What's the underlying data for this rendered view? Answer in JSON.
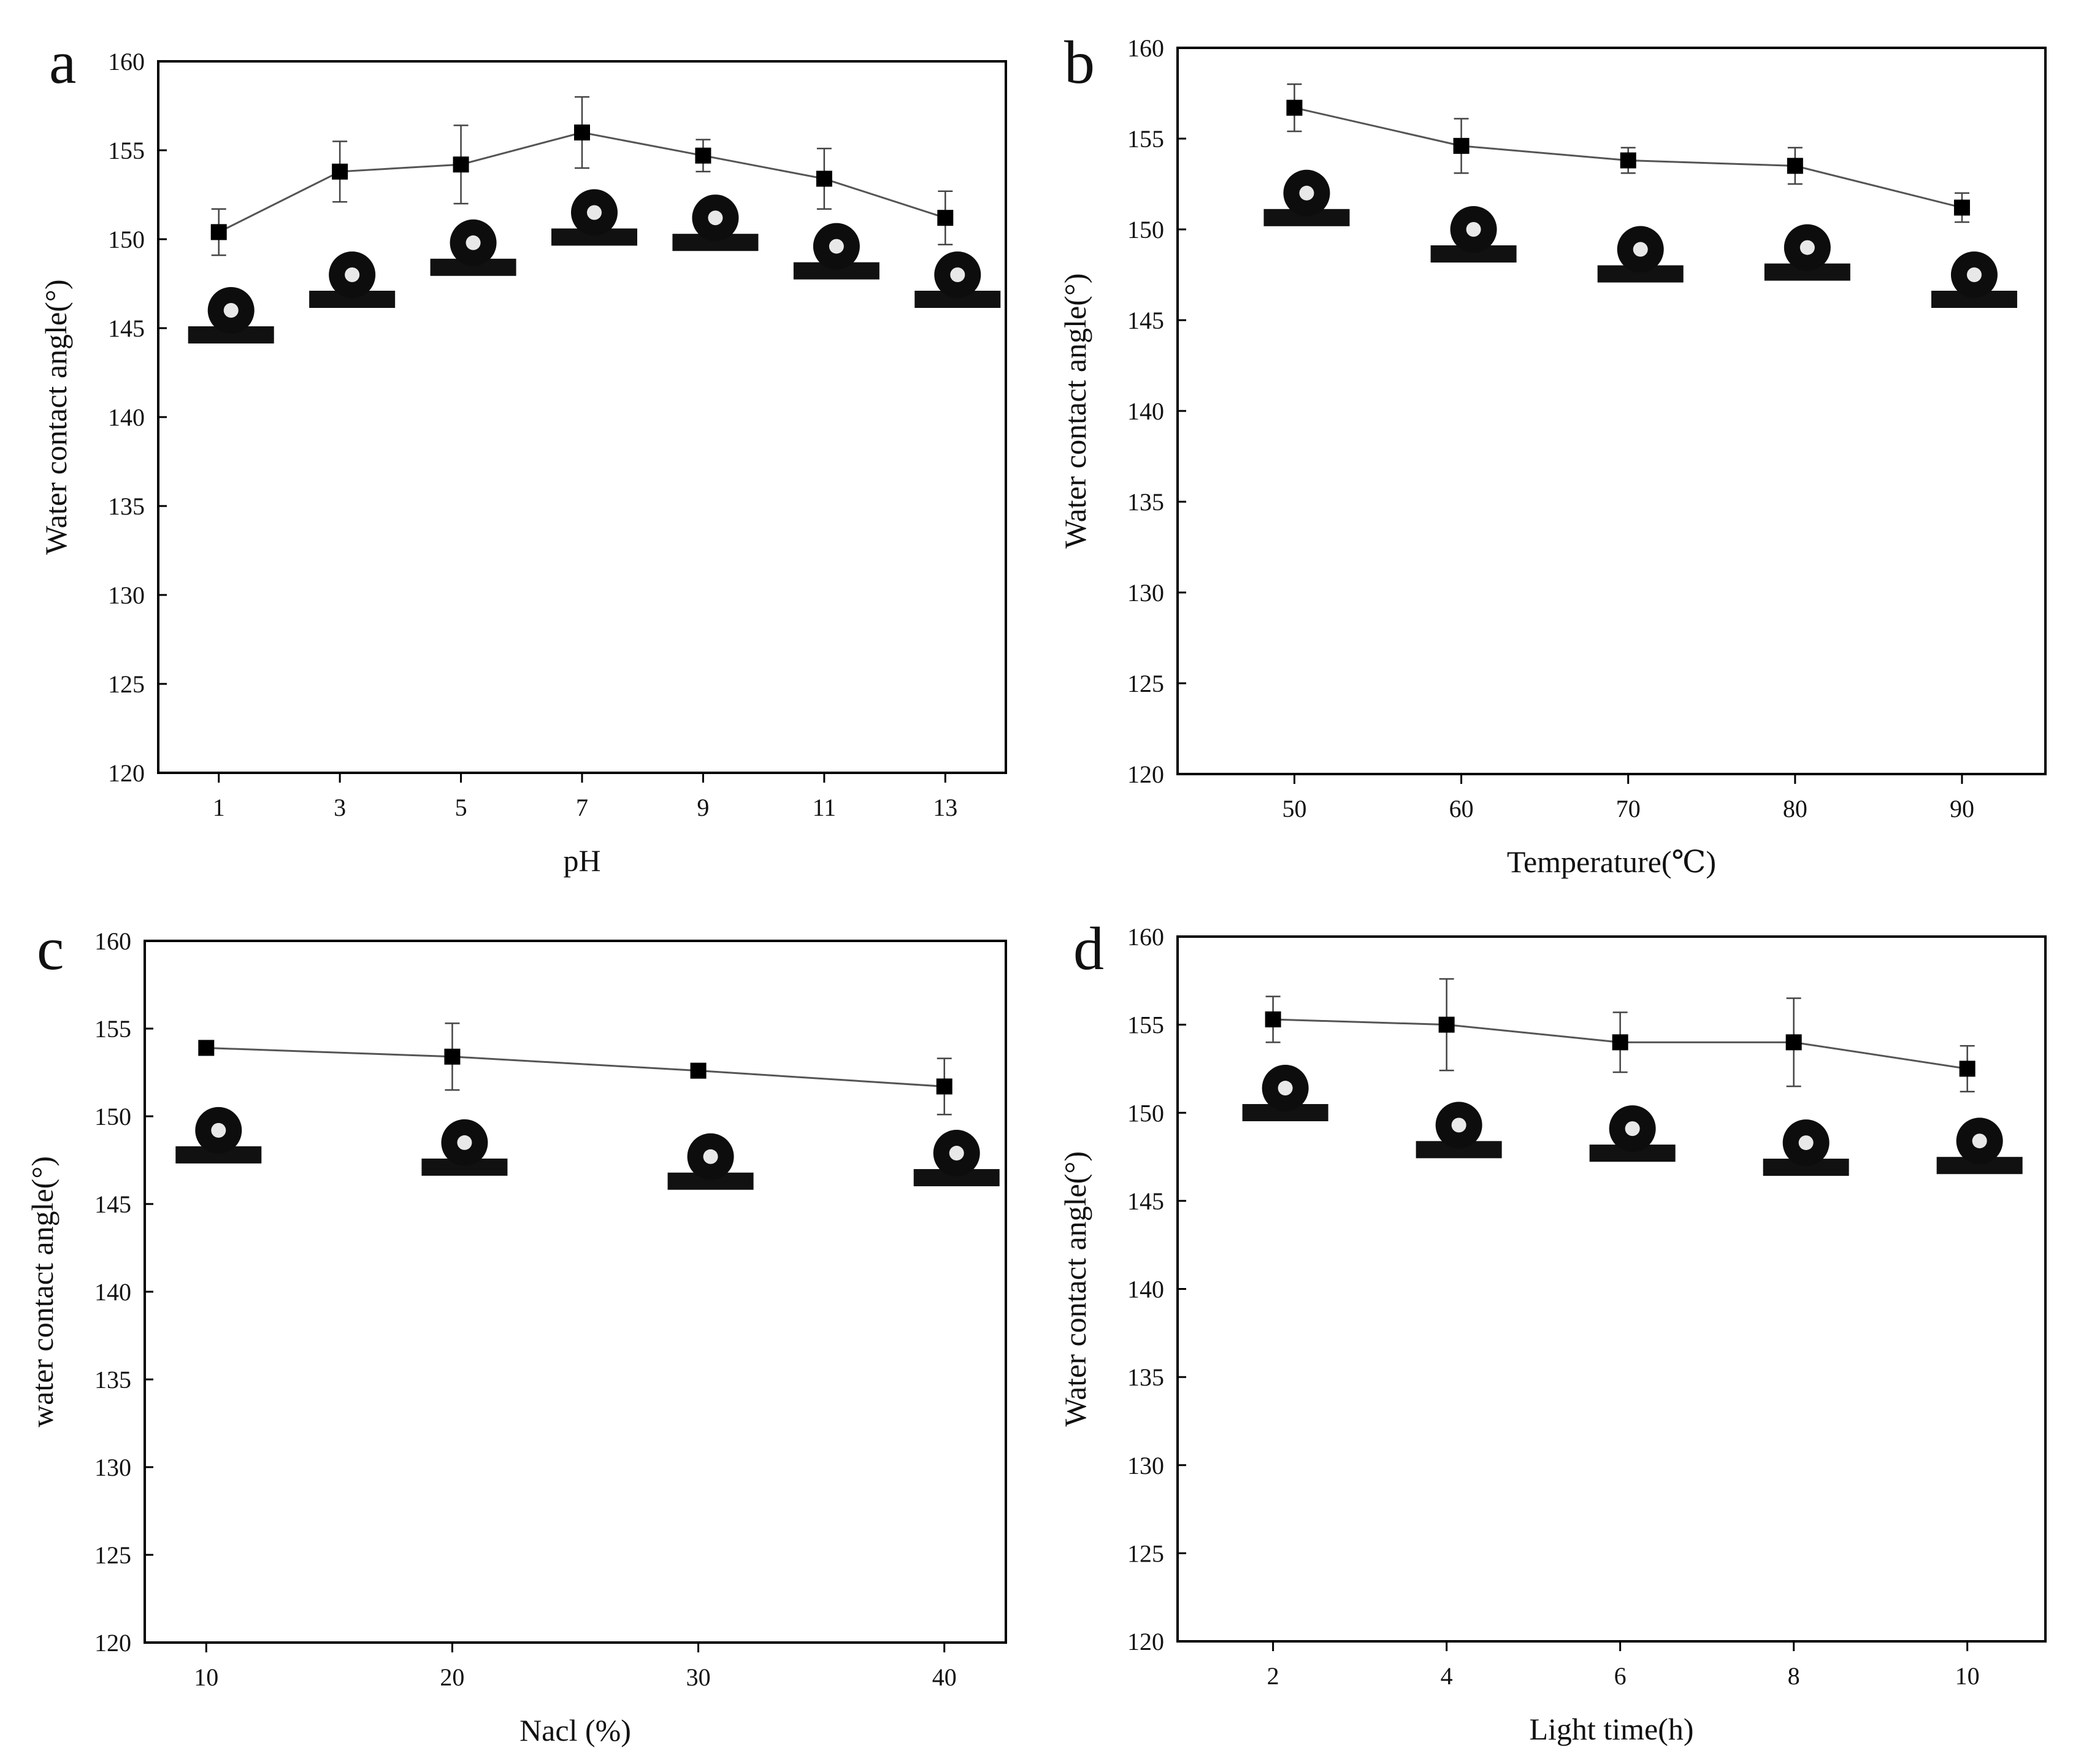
{
  "chart_data": [
    {
      "panel": "a",
      "type": "line",
      "title": "",
      "xlabel": "pH",
      "ylabel": "Water contact angle(°)",
      "categories": [
        "1",
        "3",
        "5",
        "7",
        "9",
        "11",
        "13"
      ],
      "x": [
        1,
        3,
        5,
        7,
        9,
        11,
        13
      ],
      "xlim": [
        0,
        14
      ],
      "ylim": [
        120,
        160
      ],
      "yticks": [
        120,
        125,
        130,
        135,
        140,
        145,
        150,
        155,
        160
      ],
      "grid": false,
      "series": [
        {
          "name": "Water contact angle",
          "values": [
            150.4,
            153.8,
            154.2,
            156.0,
            154.7,
            153.4,
            151.2
          ],
          "errors": [
            1.3,
            1.7,
            2.2,
            2.0,
            0.9,
            1.7,
            1.5
          ]
        }
      ],
      "droplet_y": [
        146,
        148,
        149.8,
        151.5,
        151.2,
        149.6,
        148
      ]
    },
    {
      "panel": "b",
      "type": "line",
      "title": "",
      "xlabel": "Temperature(℃)",
      "ylabel": "Water contact angle(°)",
      "categories": [
        "50",
        "60",
        "70",
        "80",
        "90"
      ],
      "x": [
        50,
        60,
        70,
        80,
        90
      ],
      "xlim": [
        43,
        95
      ],
      "ylim": [
        120,
        160
      ],
      "yticks": [
        120,
        125,
        130,
        135,
        140,
        145,
        150,
        155,
        160
      ],
      "grid": false,
      "series": [
        {
          "name": "Water contact angle",
          "values": [
            156.7,
            154.6,
            153.8,
            153.5,
            151.2
          ],
          "errors": [
            1.3,
            1.5,
            0.7,
            1.0,
            0.8
          ]
        }
      ],
      "droplet_y": [
        152,
        150,
        148.9,
        149,
        147.5
      ]
    },
    {
      "panel": "c",
      "type": "line",
      "title": "",
      "xlabel": "Nacl (%)",
      "ylabel": "water contact angle(°)",
      "categories": [
        "10",
        "20",
        "30",
        "40"
      ],
      "x": [
        10,
        20,
        30,
        40
      ],
      "xlim": [
        7.5,
        42.5
      ],
      "ylim": [
        120,
        160
      ],
      "yticks": [
        120,
        125,
        130,
        135,
        140,
        145,
        150,
        155,
        160
      ],
      "grid": false,
      "series": [
        {
          "name": "Water contact angle",
          "values": [
            153.9,
            153.4,
            152.6,
            151.7
          ],
          "errors": [
            0.1,
            1.9,
            0.4,
            1.6
          ]
        }
      ],
      "droplet_y": [
        149.2,
        148.5,
        147.7,
        147.9
      ]
    },
    {
      "panel": "d",
      "type": "line",
      "title": "",
      "xlabel": "Light time(h)",
      "ylabel": "Water contact angle(°)",
      "categories": [
        "2",
        "4",
        "6",
        "8",
        "10"
      ],
      "x": [
        2,
        4,
        6,
        8,
        10
      ],
      "xlim": [
        0.9,
        10.9
      ],
      "ylim": [
        120,
        160
      ],
      "yticks": [
        120,
        125,
        130,
        135,
        140,
        145,
        150,
        155,
        160
      ],
      "grid": false,
      "series": [
        {
          "name": "Water contact angle",
          "values": [
            155.3,
            155.0,
            154.0,
            154.0,
            152.5
          ],
          "errors": [
            1.3,
            2.6,
            1.7,
            2.5,
            1.3
          ]
        }
      ],
      "droplet_y": [
        151.4,
        149.3,
        149.1,
        148.3,
        148.4
      ]
    }
  ]
}
